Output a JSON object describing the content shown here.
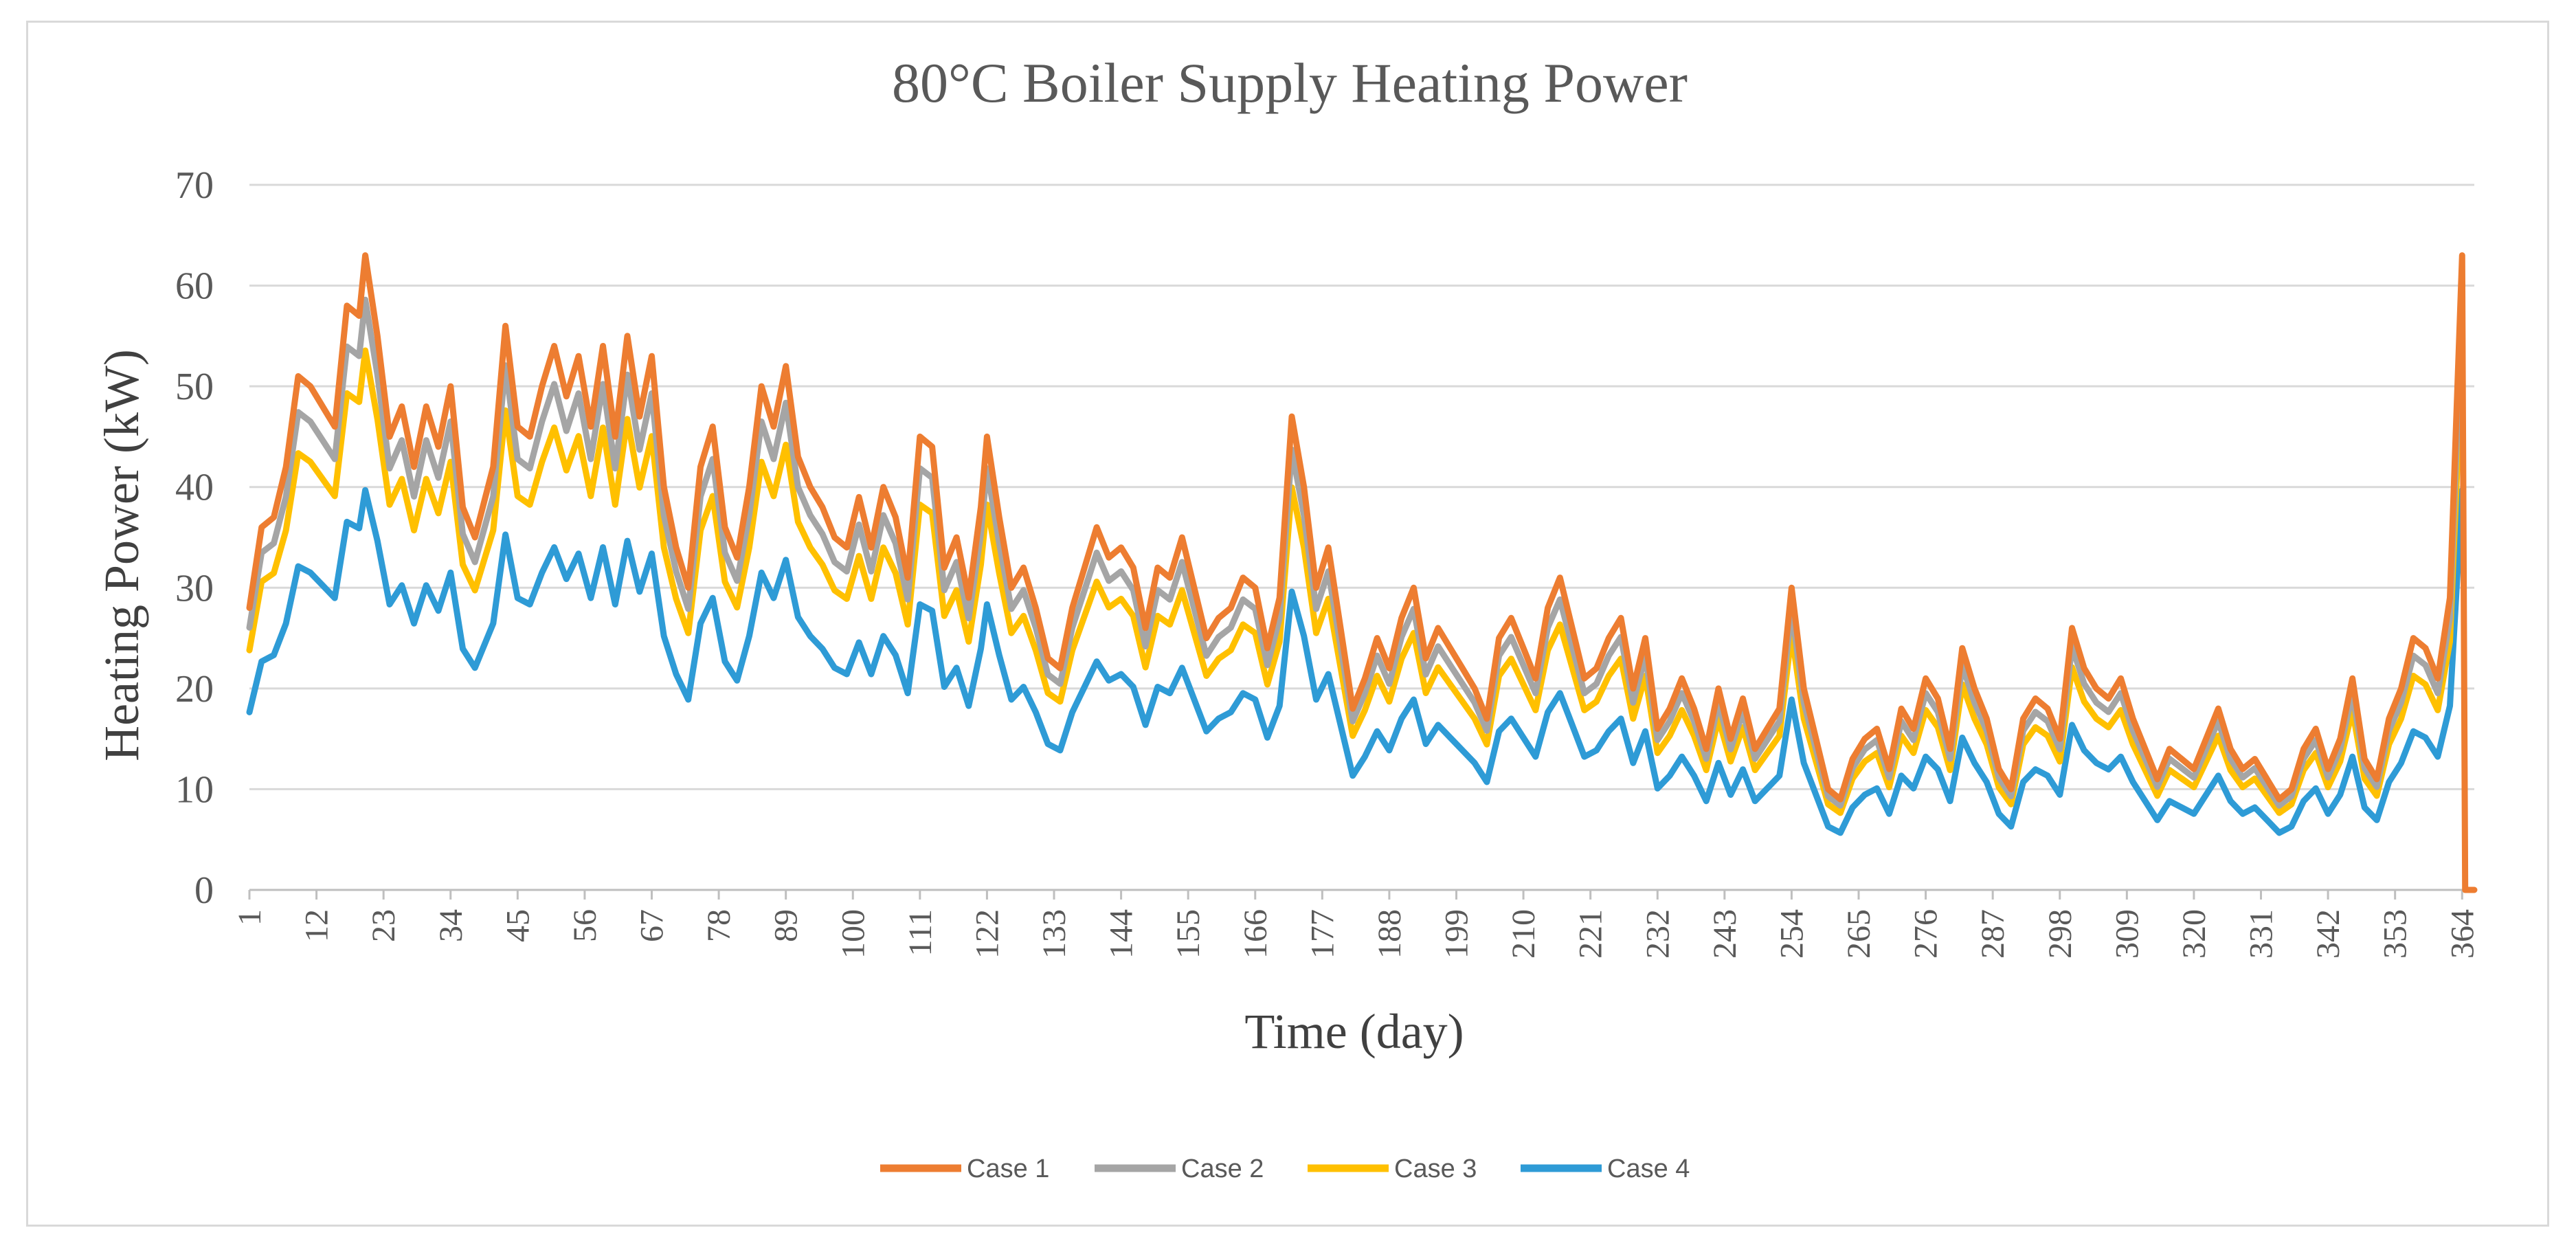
{
  "chart_data": {
    "type": "line",
    "title": "80°C Boiler Supply  Heating Power",
    "xlabel": "Time (day)",
    "ylabel": "Heating Power (kW)",
    "ylim": [
      0,
      70
    ],
    "yticks": [
      0,
      10,
      20,
      30,
      40,
      50,
      60,
      70
    ],
    "xlim": [
      1,
      366
    ],
    "xticks": [
      1,
      12,
      23,
      34,
      45,
      56,
      67,
      78,
      89,
      100,
      111,
      122,
      133,
      144,
      155,
      166,
      177,
      188,
      199,
      210,
      221,
      232,
      243,
      254,
      265,
      276,
      287,
      298,
      309,
      320,
      331,
      342,
      353,
      364
    ],
    "grid": true,
    "legend_position": "bottom",
    "series": [
      {
        "name": "Case 1",
        "color": "#ed7d31",
        "points": [
          [
            1,
            28
          ],
          [
            3,
            36
          ],
          [
            5,
            37
          ],
          [
            7,
            42
          ],
          [
            9,
            51
          ],
          [
            11,
            50
          ],
          [
            13,
            48
          ],
          [
            15,
            46
          ],
          [
            17,
            58
          ],
          [
            19,
            57
          ],
          [
            20,
            63
          ],
          [
            22,
            55
          ],
          [
            24,
            45
          ],
          [
            26,
            48
          ],
          [
            28,
            42
          ],
          [
            30,
            48
          ],
          [
            32,
            44
          ],
          [
            34,
            50
          ],
          [
            36,
            38
          ],
          [
            38,
            35
          ],
          [
            41,
            42
          ],
          [
            43,
            56
          ],
          [
            45,
            46
          ],
          [
            47,
            45
          ],
          [
            49,
            50
          ],
          [
            51,
            54
          ],
          [
            53,
            49
          ],
          [
            55,
            53
          ],
          [
            57,
            46
          ],
          [
            59,
            54
          ],
          [
            61,
            45
          ],
          [
            63,
            55
          ],
          [
            65,
            47
          ],
          [
            67,
            53
          ],
          [
            69,
            40
          ],
          [
            71,
            34
          ],
          [
            73,
            30
          ],
          [
            75,
            42
          ],
          [
            77,
            46
          ],
          [
            79,
            36
          ],
          [
            81,
            33
          ],
          [
            83,
            40
          ],
          [
            85,
            50
          ],
          [
            87,
            46
          ],
          [
            89,
            52
          ],
          [
            91,
            43
          ],
          [
            93,
            40
          ],
          [
            95,
            38
          ],
          [
            97,
            35
          ],
          [
            99,
            34
          ],
          [
            101,
            39
          ],
          [
            103,
            34
          ],
          [
            105,
            40
          ],
          [
            107,
            37
          ],
          [
            109,
            31
          ],
          [
            111,
            45
          ],
          [
            113,
            44
          ],
          [
            115,
            32
          ],
          [
            117,
            35
          ],
          [
            119,
            29
          ],
          [
            121,
            38
          ],
          [
            122,
            45
          ],
          [
            124,
            37
          ],
          [
            126,
            30
          ],
          [
            128,
            32
          ],
          [
            130,
            28
          ],
          [
            132,
            23
          ],
          [
            134,
            22
          ],
          [
            136,
            28
          ],
          [
            138,
            32
          ],
          [
            140,
            36
          ],
          [
            142,
            33
          ],
          [
            144,
            34
          ],
          [
            146,
            32
          ],
          [
            148,
            26
          ],
          [
            150,
            32
          ],
          [
            152,
            31
          ],
          [
            154,
            35
          ],
          [
            156,
            30
          ],
          [
            158,
            25
          ],
          [
            160,
            27
          ],
          [
            162,
            28
          ],
          [
            164,
            31
          ],
          [
            166,
            30
          ],
          [
            168,
            24
          ],
          [
            170,
            29
          ],
          [
            172,
            47
          ],
          [
            174,
            40
          ],
          [
            176,
            30
          ],
          [
            178,
            34
          ],
          [
            180,
            26
          ],
          [
            182,
            18
          ],
          [
            184,
            21
          ],
          [
            186,
            25
          ],
          [
            188,
            22
          ],
          [
            190,
            27
          ],
          [
            192,
            30
          ],
          [
            194,
            23
          ],
          [
            196,
            26
          ],
          [
            198,
            24
          ],
          [
            200,
            22
          ],
          [
            202,
            20
          ],
          [
            204,
            17
          ],
          [
            206,
            25
          ],
          [
            208,
            27
          ],
          [
            210,
            24
          ],
          [
            212,
            21
          ],
          [
            214,
            28
          ],
          [
            216,
            31
          ],
          [
            218,
            26
          ],
          [
            220,
            21
          ],
          [
            222,
            22
          ],
          [
            224,
            25
          ],
          [
            226,
            27
          ],
          [
            228,
            20
          ],
          [
            230,
            25
          ],
          [
            232,
            16
          ],
          [
            234,
            18
          ],
          [
            236,
            21
          ],
          [
            238,
            18
          ],
          [
            240,
            14
          ],
          [
            242,
            20
          ],
          [
            244,
            15
          ],
          [
            246,
            19
          ],
          [
            248,
            14
          ],
          [
            250,
            16
          ],
          [
            252,
            18
          ],
          [
            254,
            30
          ],
          [
            256,
            20
          ],
          [
            258,
            15
          ],
          [
            260,
            10
          ],
          [
            262,
            9
          ],
          [
            264,
            13
          ],
          [
            266,
            15
          ],
          [
            268,
            16
          ],
          [
            270,
            12
          ],
          [
            272,
            18
          ],
          [
            274,
            16
          ],
          [
            276,
            21
          ],
          [
            278,
            19
          ],
          [
            280,
            14
          ],
          [
            282,
            24
          ],
          [
            284,
            20
          ],
          [
            286,
            17
          ],
          [
            288,
            12
          ],
          [
            290,
            10
          ],
          [
            292,
            17
          ],
          [
            294,
            19
          ],
          [
            296,
            18
          ],
          [
            298,
            15
          ],
          [
            300,
            26
          ],
          [
            302,
            22
          ],
          [
            304,
            20
          ],
          [
            306,
            19
          ],
          [
            308,
            21
          ],
          [
            310,
            17
          ],
          [
            312,
            14
          ],
          [
            314,
            11
          ],
          [
            316,
            14
          ],
          [
            318,
            13
          ],
          [
            320,
            12
          ],
          [
            322,
            15
          ],
          [
            324,
            18
          ],
          [
            326,
            14
          ],
          [
            328,
            12
          ],
          [
            330,
            13
          ],
          [
            332,
            11
          ],
          [
            334,
            9
          ],
          [
            336,
            10
          ],
          [
            338,
            14
          ],
          [
            340,
            16
          ],
          [
            342,
            12
          ],
          [
            344,
            15
          ],
          [
            346,
            21
          ],
          [
            348,
            13
          ],
          [
            350,
            11
          ],
          [
            352,
            17
          ],
          [
            354,
            20
          ],
          [
            356,
            25
          ],
          [
            358,
            24
          ],
          [
            360,
            21
          ],
          [
            362,
            29
          ],
          [
            364,
            63
          ],
          [
            364.5,
            0
          ],
          [
            366,
            0
          ]
        ]
      },
      {
        "name": "Case 2",
        "color": "#a5a5a5",
        "points": []
      },
      {
        "name": "Case 3",
        "color": "#ffc000",
        "points": []
      },
      {
        "name": "Case 4",
        "color": "#2e9bd6",
        "points": []
      }
    ]
  }
}
